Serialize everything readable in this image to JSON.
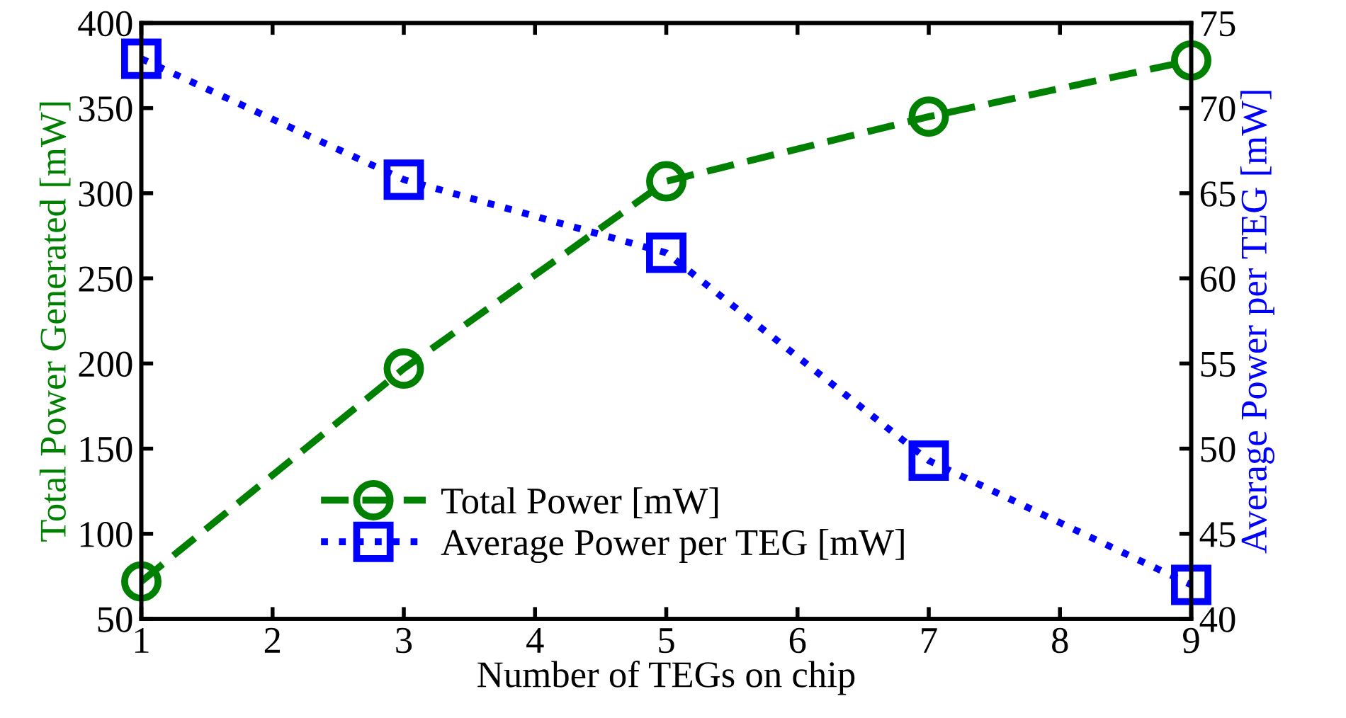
{
  "chart_data": {
    "type": "line",
    "xlabel": "Number of TEGs on chip",
    "ylabel": "Total Power Generated [mW]",
    "y2label": "Average Power per TEG [mW]",
    "x": [
      1,
      3,
      5,
      7,
      9
    ],
    "series": [
      {
        "name": "Total Power [mW]",
        "color": "#008000",
        "values": [
          72,
          197,
          307,
          345,
          378
        ],
        "marker": "circle",
        "line_style": "dashed"
      },
      {
        "name": "Average Power per TEG [mW]",
        "color": "#0000ff",
        "values": [
          72.9,
          65.8,
          61.5,
          49.3,
          42.0
        ],
        "marker": "square",
        "line_style": "dotted",
        "axis": "y2"
      }
    ],
    "xlim": [
      1,
      9
    ],
    "xticks": [
      1,
      2,
      3,
      4,
      5,
      6,
      7,
      8,
      9
    ],
    "ylim": [
      50,
      400
    ],
    "yticks": [
      50,
      100,
      150,
      200,
      250,
      300,
      350,
      400
    ],
    "y2lim": [
      40,
      75
    ],
    "y2ticks": [
      40,
      45,
      50,
      55,
      60,
      65,
      70,
      75
    ],
    "grid": false,
    "legend": "bottom"
  }
}
